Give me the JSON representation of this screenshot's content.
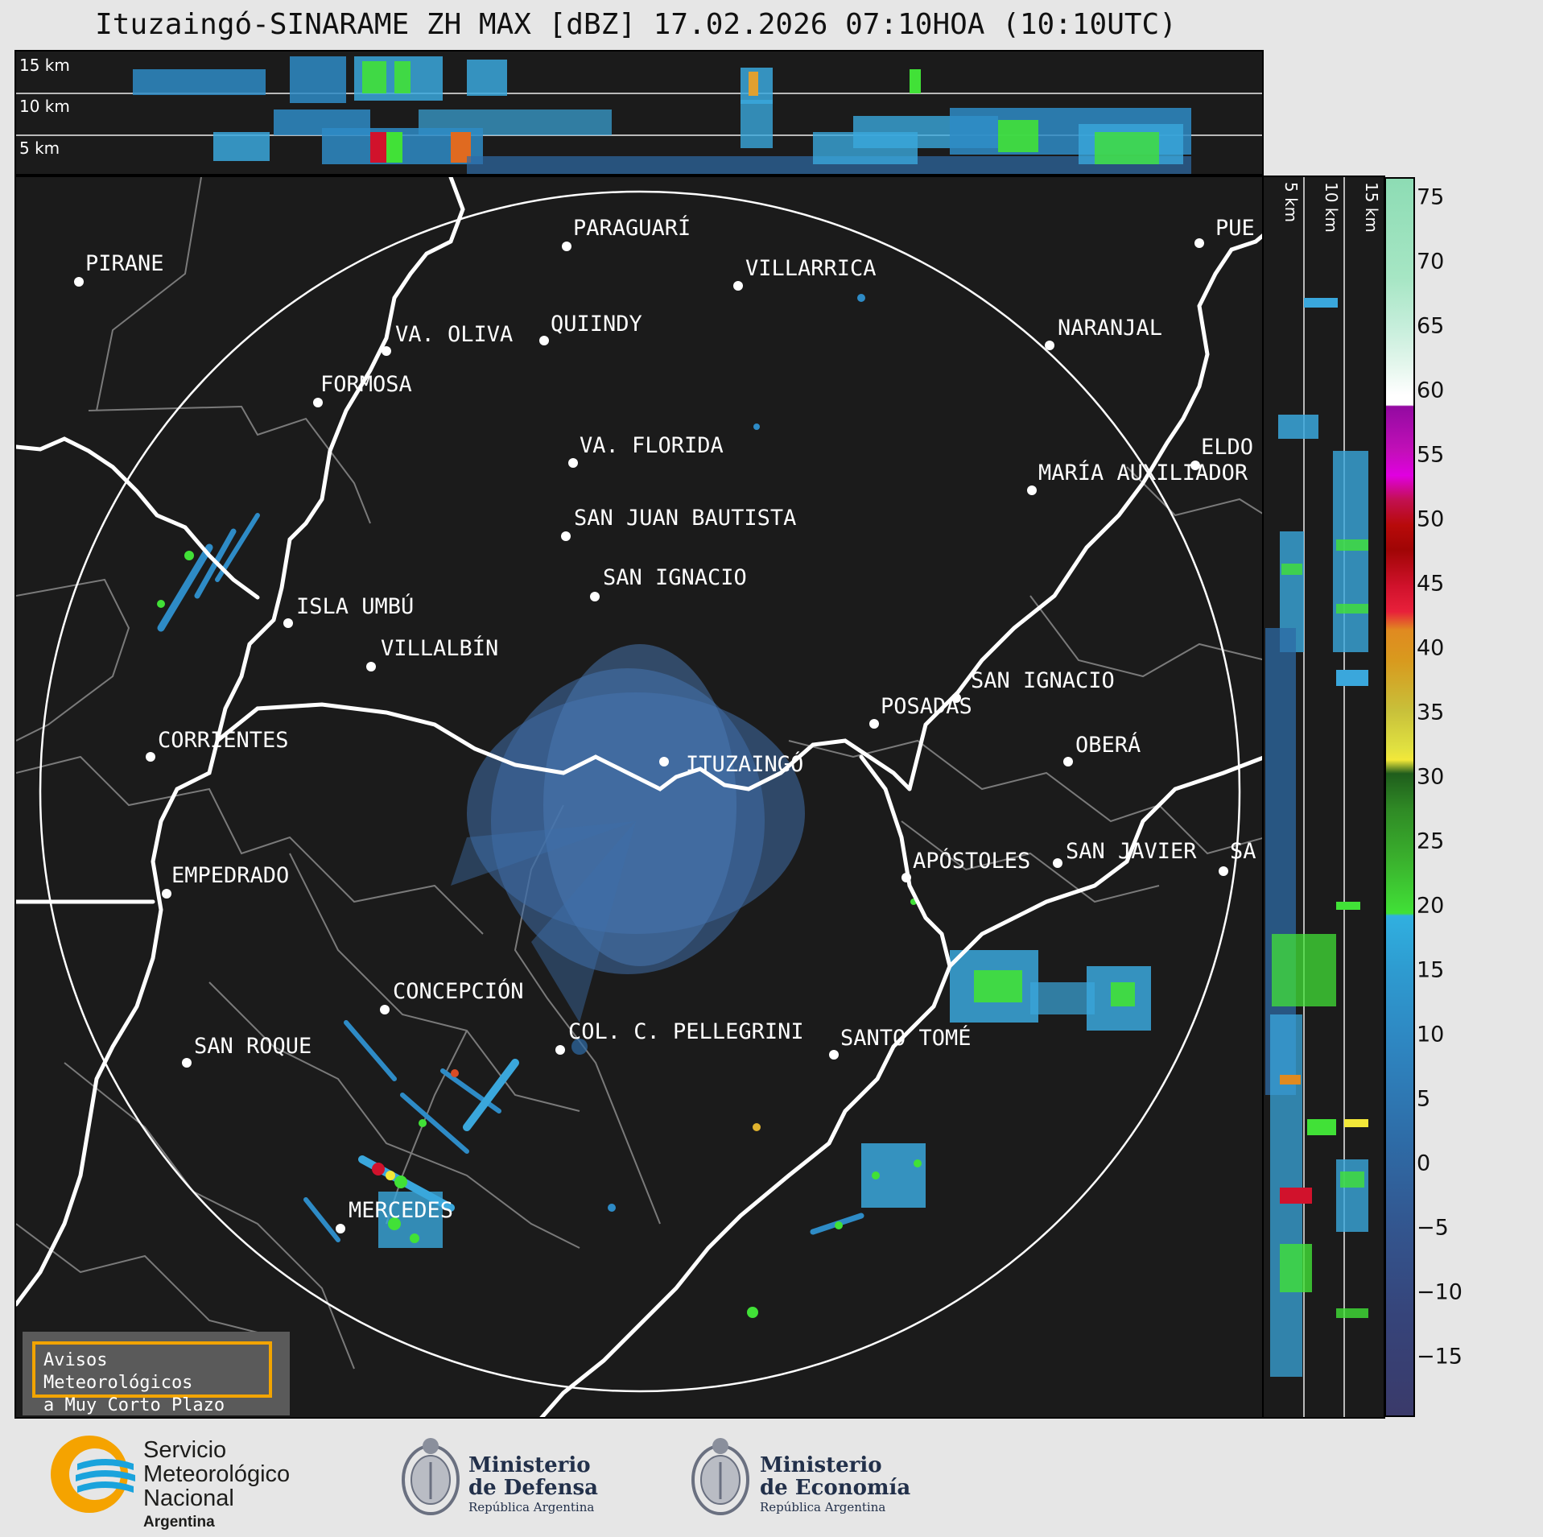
{
  "title": "Ituzaingó-SINARAME ZH MAX [dBZ] 17.02.2026 07:10HOA (10:10UTC)",
  "top_panel": {
    "height_labels": [
      "15 km",
      "10 km",
      "5 km"
    ]
  },
  "side_panel": {
    "height_labels": [
      "5 km",
      "10 km",
      "15 km"
    ]
  },
  "map": {
    "radar_site": "ITUZAINGÓ",
    "cities": [
      {
        "name": "PIRANE"
      },
      {
        "name": "PARAGUARÍ"
      },
      {
        "name": "VILLARRICA"
      },
      {
        "name": "VA. OLIVA"
      },
      {
        "name": "QUIINDY"
      },
      {
        "name": "NARANJAL"
      },
      {
        "name": "FORMOSA"
      },
      {
        "name": "VA. FLORIDA"
      },
      {
        "name": "ELDO"
      },
      {
        "name": "MARÍA AUXILIADOR"
      },
      {
        "name": "SAN JUAN BAUTISTA"
      },
      {
        "name": "SAN IGNACIO"
      },
      {
        "name": "ISLA UMBÚ"
      },
      {
        "name": "VILLALBÍN"
      },
      {
        "name": "SAN IGNACIO"
      },
      {
        "name": "POSADAS"
      },
      {
        "name": "CORRIENTES"
      },
      {
        "name": "ITUZAINGÓ"
      },
      {
        "name": "OBERÁ"
      },
      {
        "name": "EMPEDRADO"
      },
      {
        "name": "APÓSTOLES"
      },
      {
        "name": "SAN JAVIER"
      },
      {
        "name": "SA"
      },
      {
        "name": "CONCEPCIÓN"
      },
      {
        "name": "COL. C. PELLEGRINI"
      },
      {
        "name": "SANTO TOMÉ"
      },
      {
        "name": "SAN ROQUE"
      },
      {
        "name": "MERCEDES"
      },
      {
        "name": "PUE"
      }
    ]
  },
  "colorbar": {
    "unit": "dBZ",
    "ticks": [
      "75",
      "70",
      "65",
      "60",
      "55",
      "50",
      "45",
      "40",
      "35",
      "30",
      "25",
      "20",
      "15",
      "10",
      "5",
      "0",
      "−5",
      "−10",
      "−15"
    ],
    "range": [
      -19,
      77
    ]
  },
  "warning_box": {
    "line1": "Avisos Meteorológicos",
    "line2": "a Muy Corto Plazo"
  },
  "footer": {
    "smn": {
      "line1": "Servicio",
      "line2": "Meteorológico",
      "line3": "Nacional",
      "line4": "Argentina"
    },
    "defensa": {
      "line1": "Ministerio",
      "line2": "de Defensa",
      "line3": "República Argentina"
    },
    "economia": {
      "line1": "Ministerio",
      "line2": "de Economía",
      "line3": "República Argentina"
    }
  }
}
